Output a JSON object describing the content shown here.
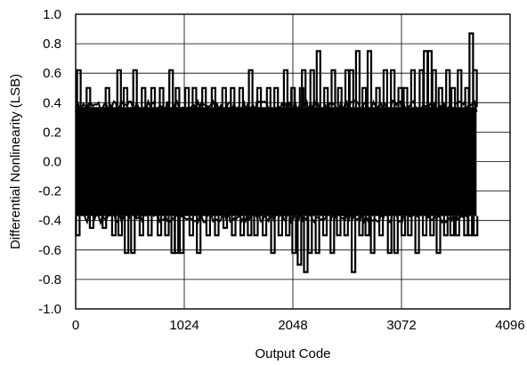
{
  "chart_data": {
    "type": "line",
    "title": "",
    "xlabel": "Output Code",
    "ylabel": "Differential Nonlinearity (LSB)",
    "xlim": [
      0,
      4096
    ],
    "ylim": [
      -1.0,
      1.0
    ],
    "xticks": [
      0,
      1024,
      2048,
      3072,
      4096
    ],
    "xtick_labels": [
      "0",
      "1024",
      "2048",
      "3072",
      "4096"
    ],
    "yticks": [
      -1.0,
      -0.8,
      -0.6,
      -0.4,
      -0.2,
      0.0,
      0.2,
      0.4,
      0.6,
      0.8,
      1.0
    ],
    "ytick_labels": [
      "-1.0",
      "-0.8",
      "-0.6",
      "-0.4",
      "-0.2",
      "0.0",
      "0.2",
      "0.4",
      "0.6",
      "0.8",
      "1.0"
    ],
    "grid": true,
    "legend": "none",
    "line_color": "#000000",
    "series": [
      {
        "x": [
          0,
          3780
        ],
        "band_upper": 0.37,
        "band_lower": -0.37,
        "peaks_positive": [
          {
            "x": 30,
            "y": 0.62
          },
          {
            "x": 120,
            "y": 0.5
          },
          {
            "x": 300,
            "y": 0.5
          },
          {
            "x": 410,
            "y": 0.62
          },
          {
            "x": 470,
            "y": 0.5
          },
          {
            "x": 560,
            "y": 0.62
          },
          {
            "x": 640,
            "y": 0.5
          },
          {
            "x": 730,
            "y": 0.5
          },
          {
            "x": 810,
            "y": 0.5
          },
          {
            "x": 900,
            "y": 0.62
          },
          {
            "x": 960,
            "y": 0.5
          },
          {
            "x": 1050,
            "y": 0.5
          },
          {
            "x": 1120,
            "y": 0.5
          },
          {
            "x": 1210,
            "y": 0.5
          },
          {
            "x": 1300,
            "y": 0.5
          },
          {
            "x": 1400,
            "y": 0.5
          },
          {
            "x": 1480,
            "y": 0.5
          },
          {
            "x": 1560,
            "y": 0.5
          },
          {
            "x": 1650,
            "y": 0.62
          },
          {
            "x": 1730,
            "y": 0.5
          },
          {
            "x": 1820,
            "y": 0.5
          },
          {
            "x": 1890,
            "y": 0.5
          },
          {
            "x": 1980,
            "y": 0.62
          },
          {
            "x": 2050,
            "y": 0.5
          },
          {
            "x": 2130,
            "y": 0.5
          },
          {
            "x": 2150,
            "y": 0.62
          },
          {
            "x": 2230,
            "y": 0.62
          },
          {
            "x": 2290,
            "y": 0.75
          },
          {
            "x": 2360,
            "y": 0.5
          },
          {
            "x": 2430,
            "y": 0.62
          },
          {
            "x": 2490,
            "y": 0.5
          },
          {
            "x": 2560,
            "y": 0.62
          },
          {
            "x": 2600,
            "y": 0.62
          },
          {
            "x": 2660,
            "y": 0.75
          },
          {
            "x": 2720,
            "y": 0.5
          },
          {
            "x": 2770,
            "y": 0.75
          },
          {
            "x": 2850,
            "y": 0.5
          },
          {
            "x": 2920,
            "y": 0.62
          },
          {
            "x": 2990,
            "y": 0.62
          },
          {
            "x": 3060,
            "y": 0.5
          },
          {
            "x": 3110,
            "y": 0.5
          },
          {
            "x": 3180,
            "y": 0.62
          },
          {
            "x": 3260,
            "y": 0.62
          },
          {
            "x": 3300,
            "y": 0.75
          },
          {
            "x": 3340,
            "y": 0.75
          },
          {
            "x": 3380,
            "y": 0.62
          },
          {
            "x": 3440,
            "y": 0.5
          },
          {
            "x": 3510,
            "y": 0.62
          },
          {
            "x": 3560,
            "y": 0.5
          },
          {
            "x": 3620,
            "y": 0.62
          },
          {
            "x": 3690,
            "y": 0.5
          },
          {
            "x": 3730,
            "y": 0.87
          },
          {
            "x": 3765,
            "y": 0.62
          }
        ],
        "peaks_negative": [
          {
            "x": 20,
            "y": -0.5
          },
          {
            "x": 150,
            "y": -0.45
          },
          {
            "x": 270,
            "y": -0.45
          },
          {
            "x": 360,
            "y": -0.5
          },
          {
            "x": 420,
            "y": -0.5
          },
          {
            "x": 480,
            "y": -0.62
          },
          {
            "x": 540,
            "y": -0.62
          },
          {
            "x": 620,
            "y": -0.5
          },
          {
            "x": 700,
            "y": -0.5
          },
          {
            "x": 790,
            "y": -0.5
          },
          {
            "x": 860,
            "y": -0.5
          },
          {
            "x": 920,
            "y": -0.62
          },
          {
            "x": 950,
            "y": -0.62
          },
          {
            "x": 1000,
            "y": -0.62
          },
          {
            "x": 1090,
            "y": -0.5
          },
          {
            "x": 1160,
            "y": -0.62
          },
          {
            "x": 1250,
            "y": -0.5
          },
          {
            "x": 1330,
            "y": -0.5
          },
          {
            "x": 1410,
            "y": -0.45
          },
          {
            "x": 1490,
            "y": -0.5
          },
          {
            "x": 1570,
            "y": -0.5
          },
          {
            "x": 1640,
            "y": -0.5
          },
          {
            "x": 1700,
            "y": -0.5
          },
          {
            "x": 1780,
            "y": -0.5
          },
          {
            "x": 1860,
            "y": -0.62
          },
          {
            "x": 1930,
            "y": -0.5
          },
          {
            "x": 2000,
            "y": -0.5
          },
          {
            "x": 2060,
            "y": -0.62
          },
          {
            "x": 2110,
            "y": -0.7
          },
          {
            "x": 2170,
            "y": -0.75
          },
          {
            "x": 2210,
            "y": -0.62
          },
          {
            "x": 2280,
            "y": -0.62
          },
          {
            "x": 2350,
            "y": -0.5
          },
          {
            "x": 2420,
            "y": -0.62
          },
          {
            "x": 2480,
            "y": -0.5
          },
          {
            "x": 2550,
            "y": -0.5
          },
          {
            "x": 2620,
            "y": -0.75
          },
          {
            "x": 2690,
            "y": -0.5
          },
          {
            "x": 2750,
            "y": -0.5
          },
          {
            "x": 2800,
            "y": -0.62
          },
          {
            "x": 2880,
            "y": -0.5
          },
          {
            "x": 2960,
            "y": -0.62
          },
          {
            "x": 3020,
            "y": -0.62
          },
          {
            "x": 3090,
            "y": -0.5
          },
          {
            "x": 3150,
            "y": -0.5
          },
          {
            "x": 3220,
            "y": -0.62
          },
          {
            "x": 3290,
            "y": -0.5
          },
          {
            "x": 3360,
            "y": -0.5
          },
          {
            "x": 3420,
            "y": -0.62
          },
          {
            "x": 3490,
            "y": -0.5
          },
          {
            "x": 3550,
            "y": -0.5
          },
          {
            "x": 3600,
            "y": -0.5
          },
          {
            "x": 3680,
            "y": -0.5
          },
          {
            "x": 3720,
            "y": -0.5
          },
          {
            "x": 3770,
            "y": -0.5
          }
        ]
      }
    ]
  }
}
